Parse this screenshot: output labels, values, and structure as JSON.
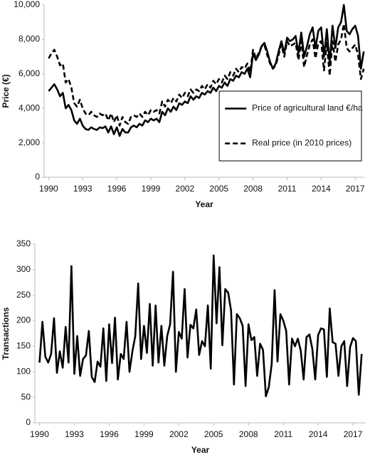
{
  "chart_data": [
    {
      "type": "line",
      "y_label": "Price (€)",
      "x_label": "Year",
      "x": [
        1990,
        1990.25,
        1990.5,
        1990.75,
        1991,
        1991.25,
        1991.5,
        1991.75,
        1992,
        1992.25,
        1992.5,
        1992.75,
        1993,
        1993.25,
        1993.5,
        1993.75,
        1994,
        1994.25,
        1994.5,
        1994.75,
        1995,
        1995.25,
        1995.5,
        1995.75,
        1996,
        1996.25,
        1996.5,
        1996.75,
        1997,
        1997.25,
        1997.5,
        1997.75,
        1998,
        1998.25,
        1998.5,
        1998.75,
        1999,
        1999.25,
        1999.5,
        1999.75,
        2000,
        2000.25,
        2000.5,
        2000.75,
        2001,
        2001.25,
        2001.5,
        2001.75,
        2002,
        2002.25,
        2002.5,
        2002.75,
        2003,
        2003.25,
        2003.5,
        2003.75,
        2004,
        2004.25,
        2004.5,
        2004.75,
        2005,
        2005.25,
        2005.5,
        2005.75,
        2006,
        2006.25,
        2006.5,
        2006.75,
        2007,
        2007.25,
        2007.5,
        2007.75,
        2008,
        2008.25,
        2008.5,
        2008.75,
        2009,
        2009.25,
        2009.5,
        2009.75,
        2010,
        2010.25,
        2010.5,
        2010.75,
        2011,
        2011.25,
        2011.5,
        2011.75,
        2012,
        2012.25,
        2012.5,
        2012.75,
        2013,
        2013.25,
        2013.5,
        2013.75,
        2014,
        2014.25,
        2014.5,
        2014.75,
        2015,
        2015.25,
        2015.5,
        2015.75,
        2016,
        2016.25,
        2016.5,
        2016.75,
        2017,
        2017.25,
        2017.5,
        2017.75
      ],
      "series": [
        {
          "name": "Price of agricultural land €/ha",
          "color": "#000000",
          "line_style": "solid",
          "values": [
            5000,
            5200,
            5400,
            5100,
            4700,
            4900,
            4000,
            4200,
            3900,
            3300,
            3100,
            3400,
            3000,
            2800,
            2750,
            2900,
            2800,
            2750,
            2900,
            2850,
            2950,
            2600,
            2950,
            2500,
            2900,
            2400,
            2800,
            2600,
            2600,
            2900,
            3000,
            2900,
            3100,
            3000,
            3300,
            3200,
            3400,
            3300,
            3400,
            3200,
            3800,
            3600,
            4000,
            3800,
            4100,
            3900,
            4300,
            4200,
            4400,
            4300,
            4700,
            4500,
            4700,
            4600,
            4900,
            4800,
            5000,
            4900,
            5200,
            5000,
            5300,
            5200,
            5500,
            5300,
            5700,
            5600,
            5900,
            5800,
            6100,
            6000,
            6300,
            5800,
            7200,
            6800,
            7100,
            7600,
            7800,
            7300,
            6700,
            6300,
            6600,
            7300,
            7900,
            7200,
            8100,
            7900,
            8000,
            8200,
            7200,
            8400,
            7000,
            7600,
            8300,
            8700,
            7500,
            8500,
            8700,
            7000,
            8600,
            6600,
            8800,
            7500,
            8700,
            9000,
            10000,
            8500,
            8300,
            8600,
            8800,
            8200,
            6300,
            7300
          ]
        },
        {
          "name": "Real price (in 2010 prices)",
          "color": "#000000",
          "line_style": "dashed",
          "values": [
            6900,
            7200,
            7400,
            7000,
            6500,
            6600,
            5500,
            5700,
            5200,
            4300,
            4100,
            4500,
            4000,
            3700,
            3600,
            3800,
            3600,
            3500,
            3700,
            3600,
            3700,
            3300,
            3700,
            3200,
            3600,
            3000,
            3500,
            3200,
            3100,
            3500,
            3600,
            3500,
            3700,
            3500,
            3800,
            3600,
            3900,
            3800,
            3900,
            3700,
            4400,
            4100,
            4500,
            4300,
            4600,
            4400,
            4800,
            4600,
            4900,
            4700,
            5100,
            4900,
            5100,
            5000,
            5300,
            5100,
            5400,
            5200,
            5600,
            5400,
            5700,
            5500,
            5900,
            5700,
            6100,
            5900,
            6300,
            6100,
            6400,
            6300,
            6600,
            6100,
            7400,
            6900,
            7200,
            7600,
            7700,
            7100,
            6600,
            6300,
            6500,
            7100,
            7700,
            7000,
            7900,
            7600,
            7700,
            7800,
            6800,
            7900,
            6400,
            7100,
            7700,
            8000,
            6900,
            7800,
            7900,
            6200,
            7800,
            5900,
            7900,
            6700,
            7700,
            8000,
            8900,
            7500,
            7300,
            7500,
            7700,
            7100,
            5700,
            6300
          ]
        }
      ],
      "xlim": [
        1989.6,
        2017.8
      ],
      "xticks": [
        1990,
        1993,
        1996,
        1999,
        2002,
        2005,
        2008,
        2011,
        2014,
        2017
      ],
      "ylim": [
        0,
        10000
      ],
      "yticks": [
        0,
        {
          "value": 2000,
          "label": "2,000"
        },
        {
          "value": 4000,
          "label": "4,000"
        },
        {
          "value": 6000,
          "label": "6,000"
        },
        {
          "value": 8000,
          "label": "8,000"
        },
        {
          "value": 10000,
          "label": "10,000"
        }
      ],
      "legend": "right",
      "grid": false
    },
    {
      "type": "line",
      "y_label": "Transactions",
      "x_label": "Year",
      "x": [
        1990,
        1990.25,
        1990.5,
        1990.75,
        1991,
        1991.25,
        1991.5,
        1991.75,
        1992,
        1992.25,
        1992.5,
        1992.75,
        1993,
        1993.25,
        1993.5,
        1993.75,
        1994,
        1994.25,
        1994.5,
        1994.75,
        1995,
        1995.25,
        1995.5,
        1995.75,
        1996,
        1996.25,
        1996.5,
        1996.75,
        1997,
        1997.25,
        1997.5,
        1997.75,
        1998,
        1998.25,
        1998.5,
        1998.75,
        1999,
        1999.25,
        1999.5,
        1999.75,
        2000,
        2000.25,
        2000.5,
        2000.75,
        2001,
        2001.25,
        2001.5,
        2001.75,
        2002,
        2002.25,
        2002.5,
        2002.75,
        2003,
        2003.25,
        2003.5,
        2003.75,
        2004,
        2004.25,
        2004.5,
        2004.75,
        2005,
        2005.25,
        2005.5,
        2005.75,
        2006,
        2006.25,
        2006.5,
        2006.75,
        2007,
        2007.25,
        2007.5,
        2007.75,
        2008,
        2008.25,
        2008.5,
        2008.75,
        2009,
        2009.25,
        2009.5,
        2009.75,
        2010,
        2010.25,
        2010.5,
        2010.75,
        2011,
        2011.25,
        2011.5,
        2011.75,
        2012,
        2012.25,
        2012.5,
        2012.75,
        2013,
        2013.25,
        2013.5,
        2013.75,
        2014,
        2014.25,
        2014.5,
        2014.75,
        2015,
        2015.25,
        2015.5,
        2015.75,
        2016,
        2016.25,
        2016.5,
        2016.75,
        2017,
        2017.25,
        2017.5,
        2017.75
      ],
      "series": [
        {
          "color": "#000000",
          "line_style": "solid",
          "values": [
            118,
            198,
            130,
            118,
            135,
            205,
            98,
            140,
            108,
            188,
            118,
            307,
            96,
            170,
            92,
            125,
            132,
            180,
            90,
            80,
            120,
            110,
            185,
            82,
            193,
            117,
            206,
            85,
            135,
            125,
            198,
            100,
            140,
            170,
            273,
            125,
            190,
            137,
            233,
            112,
            230,
            118,
            190,
            112,
            170,
            193,
            296,
            100,
            178,
            165,
            262,
            128,
            192,
            185,
            222,
            133,
            160,
            150,
            230,
            106,
            328,
            195,
            305,
            152,
            262,
            255,
            220,
            75,
            213,
            205,
            190,
            72,
            193,
            162,
            168,
            92,
            155,
            143,
            52,
            70,
            115,
            260,
            120,
            213,
            200,
            180,
            75,
            165,
            150,
            165,
            142,
            85,
            168,
            173,
            145,
            85,
            172,
            185,
            183,
            90,
            224,
            158,
            155,
            92,
            150,
            160,
            72,
            148,
            166,
            160,
            55,
            135
          ]
        }
      ],
      "xlim": [
        1989.6,
        2018.1
      ],
      "xticks": [
        1990,
        1993,
        1996,
        1999,
        2002,
        2005,
        2008,
        2011,
        2014,
        2017
      ],
      "ylim": [
        0,
        350
      ],
      "yticks": [
        0,
        50,
        100,
        150,
        200,
        250,
        300,
        350
      ],
      "grid": false
    }
  ]
}
